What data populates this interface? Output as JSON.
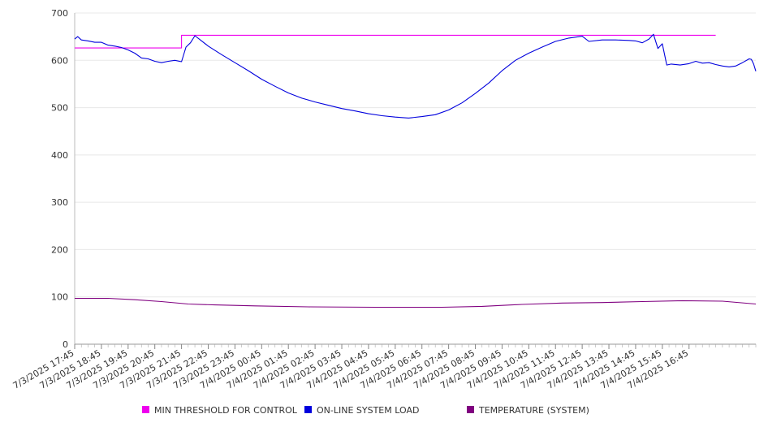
{
  "chart_data": {
    "type": "line",
    "title": "",
    "xlabel": "",
    "ylabel": "",
    "ylim": [
      0,
      700
    ],
    "yticks": [
      0,
      100,
      200,
      300,
      400,
      500,
      600,
      700
    ],
    "grid": true,
    "legend_position": "bottom",
    "x_tick_labels": [
      "7/3/2025 17:45",
      "7/3/2025 18:45",
      "7/3/2025 19:45",
      "7/3/2025 20:45",
      "7/3/2025 21:45",
      "7/3/2025 22:45",
      "7/3/2025 23:45",
      "7/4/2025 00:45",
      "7/4/2025 01:45",
      "7/4/2025 02:45",
      "7/4/2025 03:45",
      "7/4/2025 04:45",
      "7/4/2025 05:45",
      "7/4/2025 06:45",
      "7/4/2025 07:45",
      "7/4/2025 08:45",
      "7/4/2025 09:45",
      "7/4/2025 10:45",
      "7/4/2025 11:45",
      "7/4/2025 12:45",
      "7/4/2025 13:45",
      "7/4/2025 14:45",
      "7/4/2025 15:45",
      "7/4/2025 16:45"
    ],
    "series": [
      {
        "name": "MIN THRESHOLD FOR CONTROL",
        "color": "#ee00ee",
        "points": [
          [
            "7/3/2025 17:45",
            626
          ],
          [
            "7/3/2025 21:45",
            626
          ],
          [
            "7/3/2025 21:45",
            653
          ],
          [
            "7/4/2025 17:45",
            653
          ]
        ]
      },
      {
        "name": "ON-LINE SYSTEM LOAD",
        "color": "#0000dd",
        "points": [
          [
            "7/3/2025 17:45",
            645
          ],
          [
            "7/3/2025 17:52",
            650
          ],
          [
            "7/3/2025 18:00",
            643
          ],
          [
            "7/3/2025 18:15",
            641
          ],
          [
            "7/3/2025 18:30",
            638
          ],
          [
            "7/3/2025 18:45",
            638
          ],
          [
            "7/3/2025 19:00",
            632
          ],
          [
            "7/3/2025 19:15",
            630
          ],
          [
            "7/3/2025 19:30",
            627
          ],
          [
            "7/3/2025 19:45",
            622
          ],
          [
            "7/3/2025 20:00",
            615
          ],
          [
            "7/3/2025 20:15",
            605
          ],
          [
            "7/3/2025 20:30",
            603
          ],
          [
            "7/3/2025 20:45",
            598
          ],
          [
            "7/3/2025 21:00",
            595
          ],
          [
            "7/3/2025 21:15",
            598
          ],
          [
            "7/3/2025 21:30",
            600
          ],
          [
            "7/3/2025 21:45",
            597
          ],
          [
            "7/3/2025 21:55",
            628
          ],
          [
            "7/3/2025 22:05",
            637
          ],
          [
            "7/3/2025 22:15",
            652
          ],
          [
            "7/3/2025 22:45",
            630
          ],
          [
            "7/3/2025 23:15",
            612
          ],
          [
            "7/3/2025 23:45",
            595
          ],
          [
            "7/4/2025 00:15",
            578
          ],
          [
            "7/4/2025 00:45",
            560
          ],
          [
            "7/4/2025 01:15",
            545
          ],
          [
            "7/4/2025 01:45",
            531
          ],
          [
            "7/4/2025 02:15",
            520
          ],
          [
            "7/4/2025 02:45",
            512
          ],
          [
            "7/4/2025 03:15",
            505
          ],
          [
            "7/4/2025 03:45",
            498
          ],
          [
            "7/4/2025 04:15",
            493
          ],
          [
            "7/4/2025 04:45",
            487
          ],
          [
            "7/4/2025 05:15",
            483
          ],
          [
            "7/4/2025 05:45",
            480
          ],
          [
            "7/4/2025 06:15",
            478
          ],
          [
            "7/4/2025 06:45",
            481
          ],
          [
            "7/4/2025 07:15",
            485
          ],
          [
            "7/4/2025 07:45",
            495
          ],
          [
            "7/4/2025 08:15",
            510
          ],
          [
            "7/4/2025 08:45",
            530
          ],
          [
            "7/4/2025 09:15",
            552
          ],
          [
            "7/4/2025 09:45",
            578
          ],
          [
            "7/4/2025 10:15",
            600
          ],
          [
            "7/4/2025 10:45",
            615
          ],
          [
            "7/4/2025 11:15",
            628
          ],
          [
            "7/4/2025 11:45",
            640
          ],
          [
            "7/4/2025 12:15",
            647
          ],
          [
            "7/4/2025 12:45",
            651
          ],
          [
            "7/4/2025 13:00",
            640
          ],
          [
            "7/4/2025 13:30",
            643
          ],
          [
            "7/4/2025 14:00",
            643
          ],
          [
            "7/4/2025 14:30",
            642
          ],
          [
            "7/4/2025 14:45",
            641
          ],
          [
            "7/4/2025 15:00",
            637
          ],
          [
            "7/4/2025 15:15",
            645
          ],
          [
            "7/4/2025 15:25",
            655
          ],
          [
            "7/4/2025 15:35",
            625
          ],
          [
            "7/4/2025 15:45",
            635
          ],
          [
            "7/4/2025 15:55",
            590
          ],
          [
            "7/4/2025 16:05",
            592
          ],
          [
            "7/4/2025 16:25",
            590
          ],
          [
            "7/4/2025 16:45",
            593
          ],
          [
            "7/4/2025 17:00",
            598
          ],
          [
            "7/4/2025 17:15",
            594
          ],
          [
            "7/4/2025 17:30",
            595
          ],
          [
            "7/4/2025 17:45",
            591
          ],
          [
            "7/4/2025 18:00",
            588
          ],
          [
            "7/4/2025 18:15",
            586
          ],
          [
            "7/4/2025 18:30",
            588
          ],
          [
            "7/4/2025 18:45",
            595
          ],
          [
            "7/4/2025 19:00",
            603
          ],
          [
            "7/4/2025 19:05",
            602
          ],
          [
            "7/4/2025 19:10",
            592
          ],
          [
            "7/4/2025 19:15",
            577
          ]
        ]
      },
      {
        "name": "TEMPERATURE (SYSTEM)",
        "color": "#800080",
        "points": [
          [
            "7/3/2025 17:45",
            97
          ],
          [
            "7/3/2025 19:00",
            97
          ],
          [
            "7/3/2025 20:00",
            94
          ],
          [
            "7/3/2025 21:00",
            90
          ],
          [
            "7/3/2025 22:00",
            85
          ],
          [
            "7/3/2025 23:00",
            83
          ],
          [
            "7/4/2025 00:30",
            81
          ],
          [
            "7/4/2025 02:30",
            79
          ],
          [
            "7/4/2025 05:00",
            78
          ],
          [
            "7/4/2025 07:30",
            78
          ],
          [
            "7/4/2025 09:00",
            80
          ],
          [
            "7/4/2025 10:30",
            84
          ],
          [
            "7/4/2025 12:00",
            87
          ],
          [
            "7/4/2025 13:30",
            88
          ],
          [
            "7/4/2025 15:00",
            90
          ],
          [
            "7/4/2025 16:30",
            92
          ],
          [
            "7/4/2025 18:00",
            91
          ],
          [
            "7/4/2025 19:15",
            85
          ]
        ]
      }
    ]
  }
}
